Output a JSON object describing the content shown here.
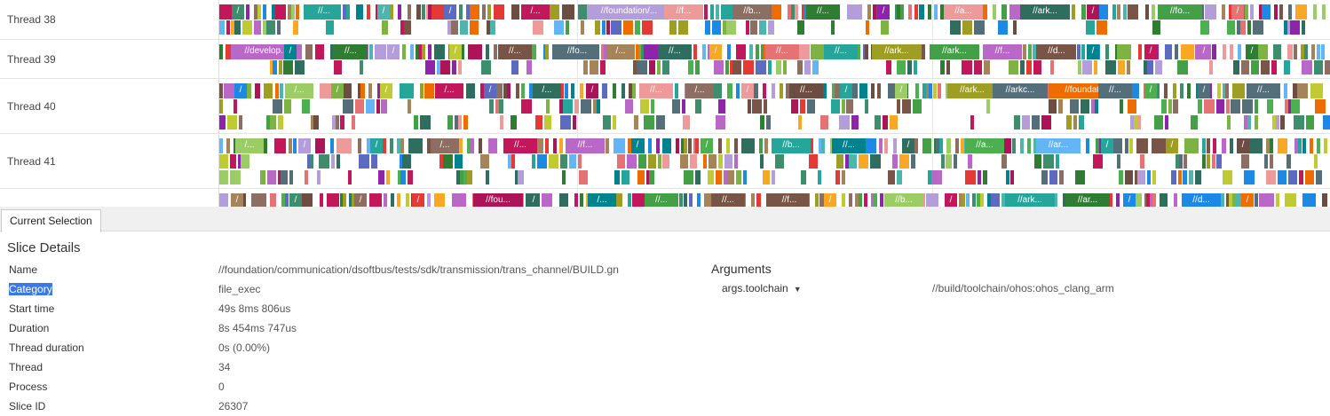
{
  "threads": [
    {
      "name": "Thread 38",
      "labels": [
        "/",
        "//...",
        "/",
        "/",
        "/...",
        "//foundation/...",
        "//f...",
        "//b...",
        "//...",
        "/",
        "//a...",
        "//ark...",
        "/",
        "//fo...",
        "/"
      ]
    },
    {
      "name": "Thread 39",
      "labels": [
        "//develop...",
        "/",
        "//...",
        "/",
        "/",
        "//...",
        "//fo...",
        "/...",
        "//...",
        "/",
        "//...",
        "//...",
        "//ark...",
        "//ark...",
        "//f...",
        "//d...",
        "/",
        "/",
        "/",
        "/"
      ]
    },
    {
      "name": "Thread 40",
      "labels": [
        "/",
        "/...",
        "/",
        "/",
        "/...",
        "/",
        "/...",
        "/",
        "//...",
        "/...",
        "/",
        "//...",
        "/",
        "/",
        "//ark...",
        "//arkc...",
        "//foundati...",
        "//...",
        "/",
        "/",
        "//..."
      ]
    },
    {
      "name": "Thread 41",
      "labels": [
        "/...",
        "/",
        "/",
        "/...",
        "//...",
        "//f...",
        "/",
        "/",
        "//b...",
        "//...",
        "/",
        "//a...",
        "//ar...",
        "/",
        "/",
        "/"
      ]
    },
    {
      "name": "",
      "labels": [
        "/",
        "/",
        "/",
        "/",
        "//fou...",
        "/",
        "/...",
        "//...",
        "//...",
        "//f...",
        "/",
        "//b...",
        "/",
        "//ark...",
        "//ar...",
        "/",
        "//d...",
        "/"
      ]
    }
  ],
  "panel": {
    "tab_label": "Current Selection",
    "slice_details_title": "Slice Details",
    "details": [
      {
        "key": "Name",
        "value": "//foundation/communication/dsoftbus/tests/sdk/transmission/trans_channel/BUILD.gn"
      },
      {
        "key": "Category",
        "value": "file_exec",
        "highlighted": true
      },
      {
        "key": "Start time",
        "value": "49s 8ms 806us"
      },
      {
        "key": "Duration",
        "value": "8s 454ms 747us"
      },
      {
        "key": "Thread duration",
        "value": "0s (0.00%)"
      },
      {
        "key": "Thread",
        "value": "34"
      },
      {
        "key": "Process",
        "value": "0"
      },
      {
        "key": "Slice ID",
        "value": "26307"
      }
    ],
    "arguments_title": "Arguments",
    "argument": {
      "key": "args.toolchain",
      "value": "//build/toolchain/ohos:ohos_clang_arm",
      "caret_icon": "caret-down-icon"
    }
  },
  "colors": {
    "palette": [
      "#3e8e6e",
      "#2e7d32",
      "#c2185b",
      "#8e24aa",
      "#5c6bc0",
      "#1e88e5",
      "#26a69a",
      "#43a047",
      "#7cb342",
      "#c0ca33",
      "#f9a825",
      "#ef6c00",
      "#e53935",
      "#6d4c41",
      "#8d6e63",
      "#546e7a",
      "#00838f",
      "#ad1457",
      "#9e9d24",
      "#795548",
      "#4caf50",
      "#64b5f6",
      "#ef9a9a",
      "#b39ddb",
      "#ba68c8",
      "#e57373",
      "#4db6ac",
      "#9ccc65",
      "#2f6d5f",
      "#a5845a"
    ],
    "selection_highlight": "#3b78e7"
  }
}
